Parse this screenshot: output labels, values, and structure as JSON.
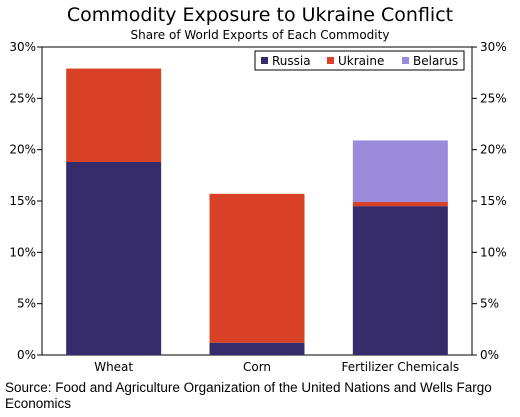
{
  "title": "Commodity Exposure to Ukraine Conflict",
  "subtitle": "Share of World Exports of Each Commodity",
  "source": "Source: Food and Agriculture Organization of the United Nations and Wells Fargo Economics",
  "chart_data": {
    "type": "bar",
    "stacked": true,
    "title": "Commodity Exposure to Ukraine Conflict",
    "subtitle": "Share of World Exports of Each Commodity",
    "categories": [
      "Wheat",
      "Corn",
      "Fertilizer Chemicals"
    ],
    "series": [
      {
        "name": "Russia",
        "color": "#362c6b",
        "values": [
          18.8,
          1.2,
          14.5
        ]
      },
      {
        "name": "Ukraine",
        "color": "#d94127",
        "values": [
          9.1,
          14.5,
          0.4
        ]
      },
      {
        "name": "Belarus",
        "color": "#9b8bdb",
        "values": [
          0,
          0,
          6.0
        ]
      }
    ],
    "ylim": [
      0,
      30
    ],
    "yticks": [
      0,
      5,
      10,
      15,
      20,
      25,
      30
    ],
    "ytick_labels": [
      "0%",
      "5%",
      "10%",
      "15%",
      "20%",
      "25%",
      "30%"
    ],
    "secondary_axis": true,
    "grid": false,
    "legend_position": "top-right"
  }
}
